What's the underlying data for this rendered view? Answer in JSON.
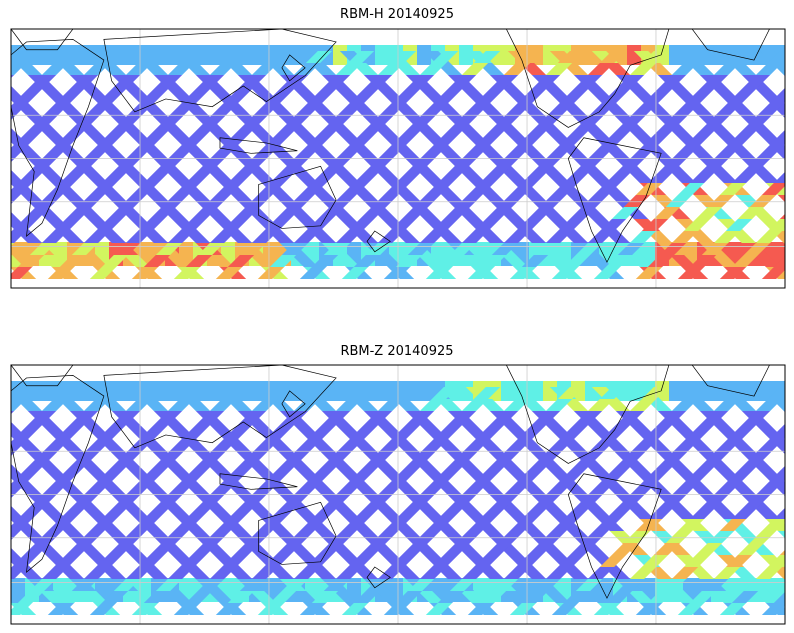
{
  "figure": {
    "panels": [
      {
        "title": "RBM-H 20140925",
        "high_value_regions": [
          "far south band (Indian Ocean sector)",
          "North Atlantic / Greenland band",
          "South Atlantic / south of South America"
        ]
      },
      {
        "title": "RBM-Z 20140925",
        "high_value_regions": [
          "South Atlantic",
          "south band (weaker)"
        ]
      }
    ]
  },
  "colors": {
    "low": "#6464f0",
    "mid_low": "#5ab4f5",
    "mid": "#5ff0e6",
    "mid_high": "#d2f55f",
    "high": "#f5b450",
    "max": "#f55a50",
    "coast": "#000000",
    "grid": "#cccccc"
  },
  "map_features": [
    "continents-outline",
    "satellite-swath-grid",
    "lat-lon-gridlines"
  ]
}
